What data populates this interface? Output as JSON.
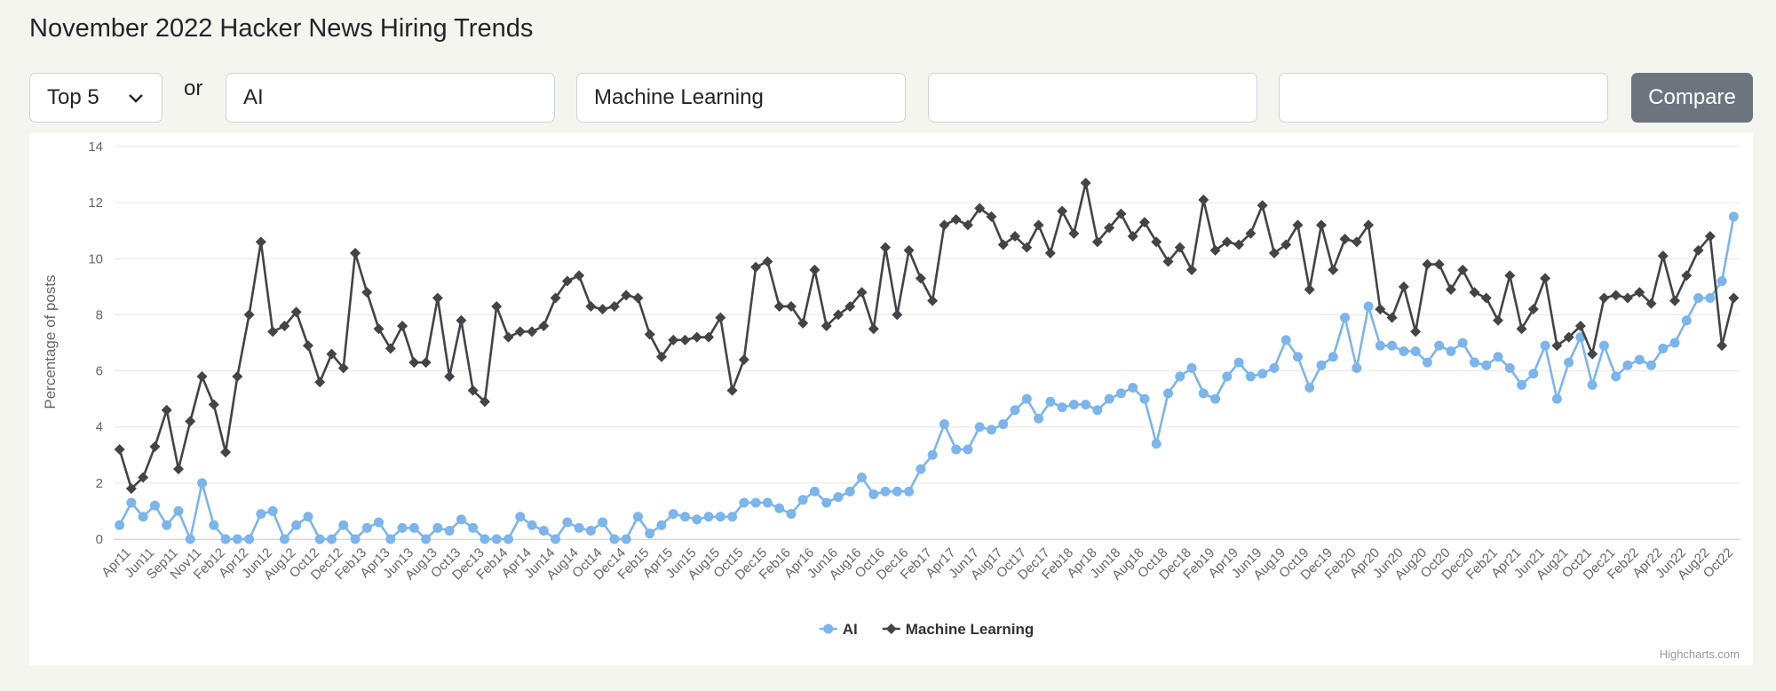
{
  "header": {
    "title": "November 2022 Hacker News Hiring Trends"
  },
  "controls": {
    "select": "Top 5",
    "separator": "or",
    "terms": [
      "AI",
      "Machine Learning"
    ],
    "button": "Compare"
  },
  "chart_data": {
    "type": "line",
    "y_label": "Percentage of posts",
    "credits": "Highcharts.com",
    "legend": "bottom",
    "grid": true,
    "ylim": [
      0,
      14
    ],
    "yticks": [
      0,
      2,
      4,
      6,
      8,
      10,
      12,
      14
    ],
    "categories": [
      null,
      "Apr11",
      null,
      "Jun11",
      null,
      "Sep11",
      null,
      "Nov11",
      null,
      "Feb12",
      null,
      "Apr12",
      null,
      "Jun12",
      null,
      "Aug12",
      null,
      "Oct12",
      null,
      "Dec12",
      null,
      "Feb13",
      null,
      "Apr13",
      null,
      "Jun13",
      null,
      "Aug13",
      null,
      "Oct13",
      null,
      "Dec13",
      null,
      "Feb14",
      null,
      "Apr14",
      null,
      "Jun14",
      null,
      "Aug14",
      null,
      "Oct14",
      null,
      "Dec14",
      null,
      "Feb15",
      null,
      "Apr15",
      null,
      "Jun15",
      null,
      "Aug15",
      null,
      "Oct15",
      null,
      "Dec15",
      null,
      "Feb16",
      null,
      "Apr16",
      null,
      "Jun16",
      null,
      "Aug16",
      null,
      "Oct16",
      null,
      "Dec16",
      null,
      "Feb17",
      null,
      "Apr17",
      null,
      "Jun17",
      null,
      "Aug17",
      null,
      "Oct17",
      null,
      "Dec17",
      null,
      "Feb18",
      null,
      "Apr18",
      null,
      "Jun18",
      null,
      "Aug18",
      null,
      "Oct18",
      null,
      "Dec18",
      null,
      "Feb19",
      null,
      "Apr19",
      null,
      "Jun19",
      null,
      "Aug19",
      null,
      "Oct19",
      null,
      "Dec19",
      null,
      "Feb20",
      null,
      "Apr20",
      null,
      "Jun20",
      null,
      "Aug20",
      null,
      "Oct20",
      null,
      "Dec20",
      null,
      "Feb21",
      null,
      "Apr21",
      null,
      "Jun21",
      null,
      "Aug21",
      null,
      "Oct21",
      null,
      "Dec21",
      null,
      "Feb22",
      null,
      "Apr22",
      null,
      "Jun22",
      null,
      "Aug22",
      null,
      "Oct22"
    ],
    "series": [
      {
        "name": "AI",
        "color": "#7cb5ec",
        "marker": "circle",
        "values": [
          0.5,
          1.3,
          0.8,
          1.2,
          0.5,
          1.0,
          0.0,
          2.0,
          0.5,
          0.0,
          0.0,
          0.0,
          0.9,
          1.0,
          0.0,
          0.5,
          0.8,
          0.0,
          0.0,
          0.5,
          0.0,
          0.4,
          0.6,
          0.0,
          0.4,
          0.4,
          0.0,
          0.4,
          0.3,
          0.7,
          0.4,
          0.0,
          0.0,
          0.0,
          0.8,
          0.5,
          0.3,
          0.0,
          0.6,
          0.4,
          0.3,
          0.6,
          0.0,
          0.0,
          0.8,
          0.2,
          0.5,
          0.9,
          0.8,
          0.7,
          0.8,
          0.8,
          0.8,
          1.3,
          1.3,
          1.3,
          1.1,
          0.9,
          1.4,
          1.7,
          1.3,
          1.5,
          1.7,
          2.2,
          1.6,
          1.7,
          1.7,
          1.7,
          2.5,
          3.0,
          4.1,
          3.2,
          3.2,
          4.0,
          3.9,
          4.1,
          4.6,
          5.0,
          4.3,
          4.9,
          4.7,
          4.8,
          4.8,
          4.6,
          5.0,
          5.2,
          5.4,
          5.0,
          3.4,
          5.2,
          5.8,
          6.1,
          5.2,
          5.0,
          5.8,
          6.3,
          5.8,
          5.9,
          6.1,
          7.1,
          6.5,
          5.4,
          6.2,
          6.5,
          7.9,
          6.1,
          8.3,
          6.9,
          6.9,
          6.7,
          6.7,
          6.3,
          6.9,
          6.7,
          7.0,
          6.3,
          6.2,
          6.5,
          6.1,
          5.5,
          5.9,
          6.9,
          5.0,
          6.3,
          7.2,
          5.5,
          6.9,
          5.8,
          6.2,
          6.4,
          6.2,
          6.8,
          7.0,
          7.8,
          8.6,
          8.6,
          9.2,
          11.5
        ]
      },
      {
        "name": "Machine Learning",
        "color": "#434348",
        "marker": "diamond",
        "values": [
          3.2,
          1.8,
          2.2,
          3.3,
          4.6,
          2.5,
          4.2,
          5.8,
          4.8,
          3.1,
          5.8,
          8.0,
          10.6,
          7.4,
          7.6,
          8.1,
          6.9,
          5.6,
          6.6,
          6.1,
          10.2,
          8.8,
          7.5,
          6.8,
          7.6,
          6.3,
          6.3,
          8.6,
          5.8,
          7.8,
          5.3,
          4.9,
          8.3,
          7.2,
          7.4,
          7.4,
          7.6,
          8.6,
          9.2,
          9.4,
          8.3,
          8.2,
          8.3,
          8.7,
          8.6,
          7.3,
          6.5,
          7.1,
          7.1,
          7.2,
          7.2,
          7.9,
          5.3,
          6.4,
          9.7,
          9.9,
          8.3,
          8.3,
          7.7,
          9.6,
          7.6,
          8.0,
          8.3,
          8.8,
          7.5,
          10.4,
          8.0,
          10.3,
          9.3,
          8.5,
          11.2,
          11.4,
          11.2,
          11.8,
          11.5,
          10.5,
          10.8,
          10.4,
          11.2,
          10.2,
          11.7,
          10.9,
          12.7,
          10.6,
          11.1,
          11.6,
          10.8,
          11.3,
          10.6,
          9.9,
          10.4,
          9.6,
          12.1,
          10.3,
          10.6,
          10.5,
          10.9,
          11.9,
          10.2,
          10.5,
          11.2,
          8.9,
          11.2,
          9.6,
          10.7,
          10.6,
          11.2,
          8.2,
          7.9,
          9.0,
          7.4,
          9.8,
          9.8,
          8.9,
          9.6,
          8.8,
          8.6,
          7.8,
          9.4,
          7.5,
          8.2,
          9.3,
          6.9,
          7.2,
          7.6,
          6.6,
          8.6,
          8.7,
          8.6,
          8.8,
          8.4,
          10.1,
          8.5,
          9.4,
          10.3,
          10.8,
          6.9,
          8.6
        ]
      }
    ]
  }
}
